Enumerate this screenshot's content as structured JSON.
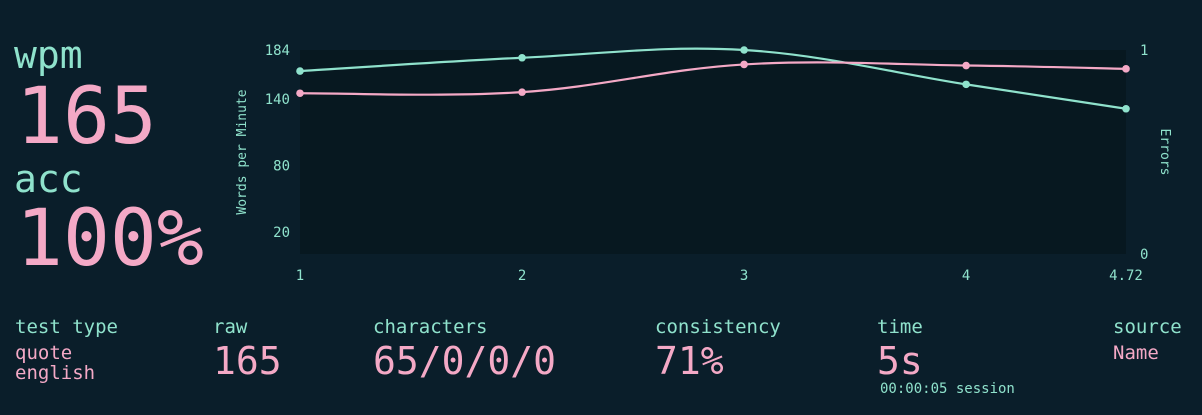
{
  "stats": {
    "wpm_label": "wpm",
    "wpm_value": "165",
    "acc_label": "acc",
    "acc_value": "100%"
  },
  "details": {
    "test_type_label": "test type",
    "test_type_line1": "quote",
    "test_type_line2": "english",
    "raw_label": "raw",
    "raw_value": "165",
    "characters_label": "characters",
    "characters_value": "65/0/0/0",
    "consistency_label": "consistency",
    "consistency_value": "71%",
    "time_label": "time",
    "time_value": "5s",
    "session_text": "00:00:05 session",
    "source_label": "source",
    "source_value": "Name"
  },
  "colors": {
    "background": "#0a1e2a",
    "accent": "#8fe2cc",
    "highlight": "#f4a9c6",
    "plot_bg": "#071820"
  },
  "chart_data": {
    "type": "line",
    "x": [
      1,
      2,
      3,
      4,
      4.72
    ],
    "x_tick_labels": [
      "1",
      "2",
      "3",
      "4",
      "4.72"
    ],
    "series": [
      {
        "axis": "left",
        "color": "#8fe2cc",
        "values": [
          165,
          177,
          184,
          153,
          131
        ]
      },
      {
        "axis": "left",
        "color": "#f4a9c6",
        "values": [
          145,
          146,
          171,
          170,
          167
        ]
      }
    ],
    "ylabel": "Words per Minute",
    "y_ticks": [
      20,
      80,
      140,
      184
    ],
    "ylim": [
      0,
      184
    ],
    "y2label": "Errors",
    "y2_ticks": [
      0,
      1
    ],
    "y2lim": [
      0,
      1
    ],
    "xlim": [
      1,
      4.72
    ],
    "grid": false
  }
}
